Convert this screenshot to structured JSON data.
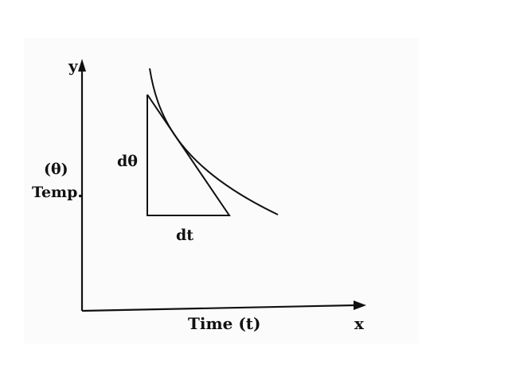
{
  "axes": {
    "y_label": "y",
    "x_label": "x",
    "x_title": "Time (t)",
    "y_title_line1": "(θ)",
    "y_title_line2": "Temp."
  },
  "triangle": {
    "vertical_label": "dθ",
    "horizontal_label": "dt"
  },
  "colors": {
    "ink": "#111111",
    "paper": "#ffffff",
    "plot_bg": "#fbfbfb"
  }
}
